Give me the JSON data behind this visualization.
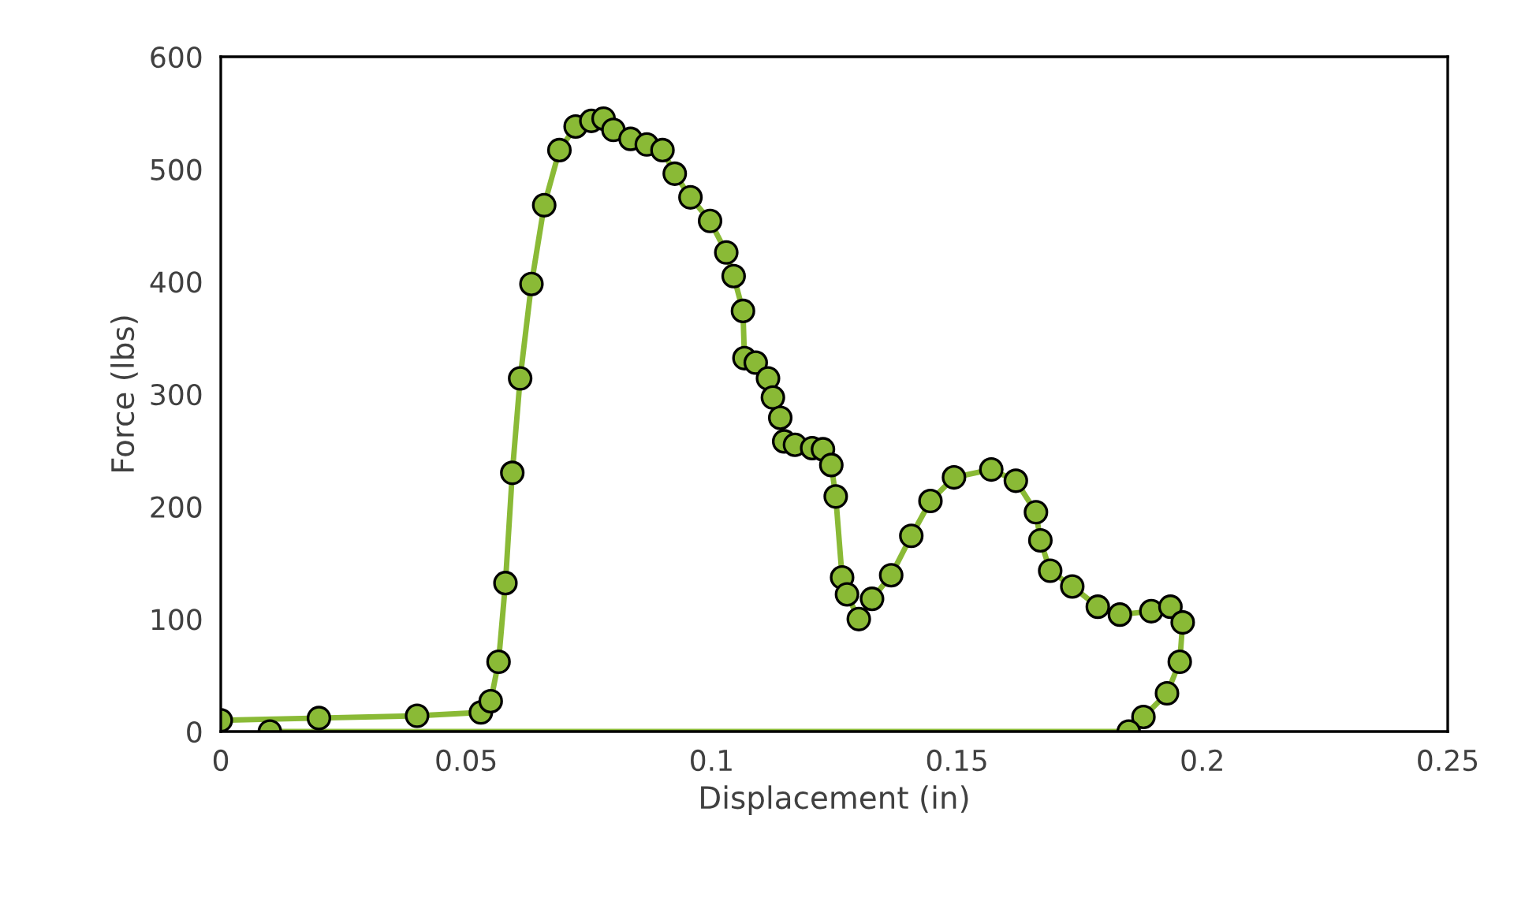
{
  "chart_data": {
    "type": "line",
    "xlabel": "Displacement (in)",
    "ylabel": "Force (lbs)",
    "xlim": [
      0,
      0.25
    ],
    "ylim": [
      0,
      600
    ],
    "xticks": [
      0,
      0.05,
      0.1,
      0.15,
      0.2,
      0.25
    ],
    "yticks": [
      0,
      100,
      200,
      300,
      400,
      500,
      600
    ],
    "grid": false,
    "marker": "circle",
    "line_style": "solid",
    "series": [
      {
        "color": "#8aba36",
        "x": [
          0,
          0.02,
          0.04,
          0.053,
          0.055,
          0.0566,
          0.058,
          0.0594,
          0.061,
          0.0633,
          0.0659,
          0.069,
          0.0723,
          0.0755,
          0.078,
          0.08,
          0.0835,
          0.0868,
          0.09,
          0.0925,
          0.0957,
          0.0997,
          0.103,
          0.1045,
          0.1064,
          0.1067,
          0.109,
          0.1115,
          0.1125,
          0.114,
          0.1148,
          0.117,
          0.1205,
          0.1227,
          0.1244,
          0.1253,
          0.1266,
          0.1276,
          0.13,
          0.1327,
          0.1366,
          0.1407,
          0.1446,
          0.1494,
          0.157,
          0.162,
          0.1661,
          0.167,
          0.169,
          0.1735,
          0.1787,
          0.1832,
          0.1896,
          0.1935,
          0.196,
          0.1954,
          0.1928,
          0.188,
          0.185,
          0.01
        ],
        "values": [
          10,
          12,
          14,
          17,
          27,
          62,
          132,
          230,
          314,
          398,
          468,
          517,
          538,
          543,
          545,
          535,
          527,
          522,
          517,
          496,
          475,
          454,
          426,
          405,
          374,
          332,
          328,
          314,
          297,
          279,
          258,
          255,
          252,
          251,
          237,
          209,
          137,
          122,
          100,
          118,
          139,
          174,
          205,
          226,
          233,
          223,
          195,
          170,
          143,
          129,
          111,
          104,
          107,
          111,
          97,
          62,
          34,
          13,
          0,
          0
        ]
      }
    ]
  }
}
